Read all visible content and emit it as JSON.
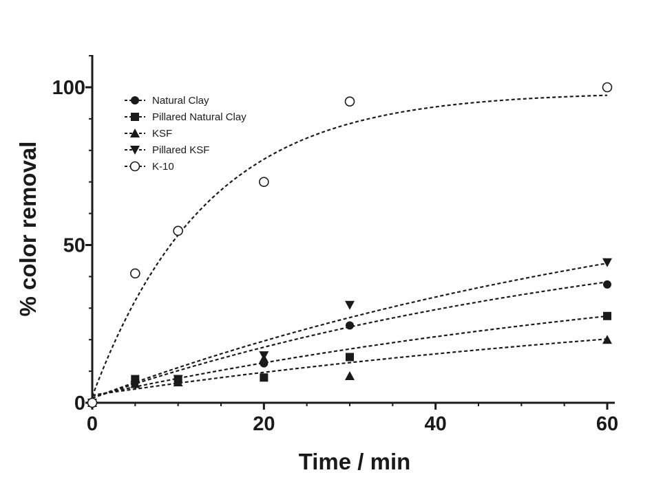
{
  "chart_data": {
    "type": "scatter",
    "title": "",
    "xlabel": "Time / min",
    "ylabel": "% color removal",
    "xlim": [
      0,
      60
    ],
    "ylim": [
      0,
      110
    ],
    "x_ticks": [
      0,
      20,
      40,
      60
    ],
    "y_ticks": [
      0,
      50,
      100
    ],
    "x_tick_labels": [
      "0",
      "20",
      "40",
      "60"
    ],
    "y_tick_labels": [
      "0",
      "50",
      "100"
    ],
    "legend_position": "top-left",
    "colors": {
      "ink": "#1a1a1a",
      "background": "#ffffff"
    },
    "series": [
      {
        "name": "Natural Clay",
        "marker": "circle-filled",
        "x": [
          0,
          5,
          10,
          20,
          30,
          60
        ],
        "y": [
          0,
          7,
          7,
          12.5,
          24.5,
          37.5
        ],
        "fit": {
          "model": "exponential",
          "ymax": 63,
          "k": 0.0152,
          "intercept": 1.5
        }
      },
      {
        "name": "Pillared Natural Clay",
        "marker": "square-filled",
        "x": [
          0,
          5,
          10,
          20,
          30,
          60
        ],
        "y": [
          0,
          7.5,
          7.5,
          8,
          14.5,
          27.5
        ],
        "fit": {
          "model": "exponential",
          "ymax": 52,
          "k": 0.0118,
          "intercept": 2.2
        }
      },
      {
        "name": "KSF",
        "marker": "triangle-up-filled",
        "x": [
          0,
          5,
          10,
          20,
          30,
          60
        ],
        "y": [
          0,
          6,
          6.5,
          14,
          8.5,
          20
        ],
        "fit": {
          "model": "exponential",
          "ymax": 40,
          "k": 0.0107,
          "intercept": 2.4
        }
      },
      {
        "name": "Pillared KSF",
        "marker": "triangle-down-filled",
        "x": [
          0,
          5,
          10,
          20,
          30,
          60
        ],
        "y": [
          0,
          5.5,
          7.5,
          15,
          31,
          44.5
        ],
        "fit": {
          "model": "exponential",
          "ymax": 80,
          "k": 0.0131,
          "intercept": 1.5
        }
      },
      {
        "name": "K-10",
        "marker": "circle-open",
        "x": [
          0,
          5,
          10,
          20,
          30,
          60
        ],
        "y": [
          0,
          41,
          54.5,
          70,
          95.5,
          100
        ],
        "fit": {
          "model": "exponential",
          "ymax": 98.5,
          "k": 0.0755,
          "intercept": 2
        }
      }
    ]
  }
}
